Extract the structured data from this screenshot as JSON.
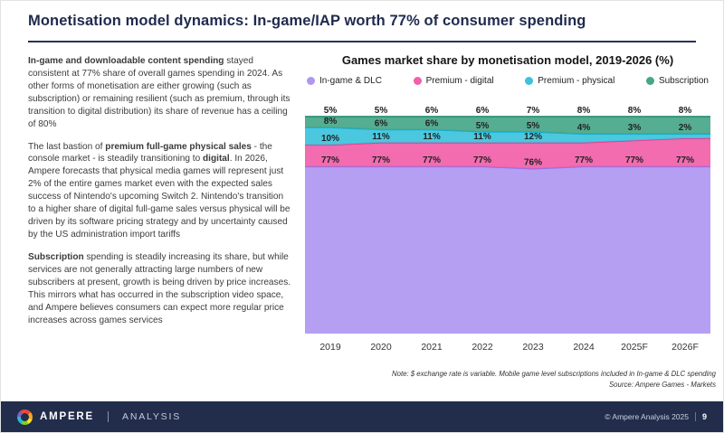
{
  "title": "Monetisation model dynamics: In-game/IAP worth 77% of consumer spending",
  "left_panel": {
    "paragraphs": [
      {
        "segments": [
          {
            "t": "In-game and downloadable content spending",
            "b": 1
          },
          {
            "t": " stayed consistent at 77% share of overall games spending in 2024. As other forms of monetisation are either growing (such as subscription) or remaining resilient (such as premium, through its transition to digital distribution) its share of revenue has a ceiling of 80%",
            "b": 0
          }
        ]
      },
      {
        "segments": [
          {
            "t": "The last bastion of ",
            "b": 0
          },
          {
            "t": "premium full-game physical sales",
            "b": 1
          },
          {
            "t": " - the console market - is steadily transitioning to ",
            "b": 0
          },
          {
            "t": "digital",
            "b": 1
          },
          {
            "t": ". In 2026, Ampere forecasts that physical media games will represent just 2% of the entire games market even with the expected sales success of Nintendo's upcoming Switch 2. Nintendo's transition to a higher share of digital full-game sales versus physical will be driven by its software pricing strategy and by uncertainty caused by the US administration import tariffs",
            "b": 0
          }
        ]
      },
      {
        "segments": [
          {
            "t": "Subscription",
            "b": 1
          },
          {
            "t": " spending is steadily increasing its share, but while services are not generally attracting large numbers of new subscribers at present, growth is being driven by price increases. This mirrors what has occurred in the subscription video space, and Ampere believes consumers can expect more regular price increases across games services",
            "b": 0
          }
        ]
      }
    ]
  },
  "chart": {
    "title": "Games market share by monetisation model, 2019-2026 (%)",
    "note": "Note: $ exchange rate is variable. Mobile game level subscriptions included in In-game & DLC spending",
    "source": "Source: Ampere Games - Markets"
  },
  "chart_data": {
    "type": "area",
    "stacked": true,
    "title": "Games market share by monetisation model, 2019-2026 (%)",
    "xlabel": "",
    "ylabel": "",
    "ylim": [
      0,
      100
    ],
    "legend_position": "top",
    "categories": [
      "2019",
      "2020",
      "2021",
      "2022",
      "2023",
      "2024",
      "2025F",
      "2026F"
    ],
    "series": [
      {
        "name": "In-game & DLC",
        "color": "#ae97f2",
        "line": "#8d6fee",
        "values": [
          77,
          77,
          77,
          77,
          76,
          77,
          77,
          77
        ],
        "labels": [
          "77%",
          "77%",
          "77%",
          "77%",
          "76%",
          "77%",
          "77%",
          "77%"
        ]
      },
      {
        "name": "Premium - digital",
        "color": "#f160a8",
        "line": "#e83d94",
        "values": [
          10,
          11,
          11,
          11,
          12,
          11,
          12,
          13
        ],
        "labels": [
          "10%",
          "11%",
          "11%",
          "11%",
          "12%",
          "",
          "",
          ""
        ]
      },
      {
        "name": "Premium - physical",
        "color": "#3cc3dc",
        "line": "#12b2d2",
        "values": [
          8,
          6,
          6,
          5,
          5,
          4,
          3,
          2
        ],
        "labels": [
          "8%",
          "6%",
          "6%",
          "5%",
          "5%",
          "4%",
          "3%",
          "2%"
        ]
      },
      {
        "name": "Subscription",
        "color": "#46a689",
        "line": "#2d9274",
        "values": [
          5,
          5,
          6,
          6,
          7,
          8,
          8,
          8
        ],
        "labels": [
          "5%",
          "5%",
          "6%",
          "6%",
          "7%",
          "8%",
          "8%",
          "8%"
        ]
      }
    ]
  },
  "footer": {
    "brand": "AMPERE",
    "brand_sub": "ANALYSIS",
    "copyright": "© Ampere Analysis 2025",
    "page": "9"
  }
}
